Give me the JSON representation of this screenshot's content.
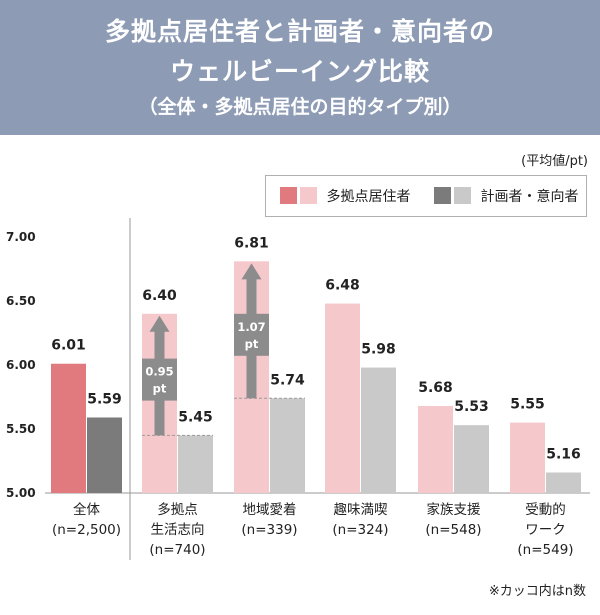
{
  "header": {
    "title_line1": "多拠点居住者と計画者・意向者の",
    "title_line2": "ウェルビーイング比較",
    "subtitle": "（全体・多拠点居住の目的タイプ別）"
  },
  "unit_label": "(平均値/pt)",
  "footnote": "※カッコ内はn数",
  "colors": {
    "header_bg": "#8d9bb5",
    "resident_dark": "#e07a7f",
    "resident_light": "#f5c9cc",
    "planner_dark": "#7b7b7b",
    "planner_light": "#c9c9c9",
    "arrow": "#8c8c8c"
  },
  "chart_data": {
    "type": "bar",
    "ylim": [
      5.0,
      7.0
    ],
    "yticks": [
      "5.00",
      "5.50",
      "6.00",
      "6.50",
      "7.00"
    ],
    "categories": [
      {
        "line1": "全体",
        "line2": "(n=2,500)",
        "line3": ""
      },
      {
        "line1": "多拠点",
        "line2": "生活志向",
        "line3": "(n=740)"
      },
      {
        "line1": "地域愛着",
        "line2": "(n=339)",
        "line3": ""
      },
      {
        "line1": "趣味満喫",
        "line2": "(n=324)",
        "line3": ""
      },
      {
        "line1": "家族支援",
        "line2": "(n=548)",
        "line3": ""
      },
      {
        "line1": "受動的",
        "line2": "ワーク",
        "line3": "(n=549)"
      }
    ],
    "series": [
      {
        "name": "多拠点居住者",
        "values": [
          6.01,
          6.4,
          6.81,
          6.48,
          5.68,
          5.55
        ],
        "labels": [
          "6.01",
          "6.40",
          "6.81",
          "6.48",
          "5.68",
          "5.55"
        ]
      },
      {
        "name": "計画者・意向者",
        "values": [
          5.59,
          5.45,
          5.74,
          5.98,
          5.53,
          5.16
        ],
        "labels": [
          "5.59",
          "5.45",
          "5.74",
          "5.98",
          "5.53",
          "5.16"
        ]
      }
    ],
    "annotations": [
      {
        "category_index": 1,
        "diff_line1": "0.95",
        "diff_line2": "pt"
      },
      {
        "category_index": 2,
        "diff_line1": "1.07",
        "diff_line2": "pt"
      }
    ]
  }
}
